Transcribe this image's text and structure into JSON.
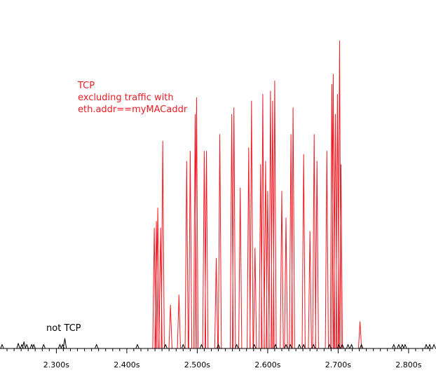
{
  "chart_data": {
    "type": "line",
    "xlabel": "",
    "ylabel": "",
    "xlim": [
      2.22,
      2.845
    ],
    "ylim": [
      0,
      1
    ],
    "x_ticks": [
      "2.300s",
      "2.400s",
      "2.500s",
      "2.600s",
      "2.700s",
      "2.800s"
    ],
    "x_tick_values": [
      2.3,
      2.4,
      2.5,
      2.6,
      2.7,
      2.8
    ],
    "grid": false,
    "legend": "none",
    "annotations": [
      {
        "lines": [
          "TCP",
          "excluding traffic with",
          "eth.addr==myMACaddr"
        ],
        "color": "#ed1c24"
      },
      {
        "lines": [
          "not TCP"
        ],
        "color": "#000000"
      }
    ],
    "series": [
      {
        "color": "#ed1c24",
        "baseline_from": 2.436,
        "baseline_to": 2.734,
        "peaks": [
          [
            2.439,
            0.36
          ],
          [
            2.442,
            0.38
          ],
          [
            2.444,
            0.42
          ],
          [
            2.448,
            0.36
          ],
          [
            2.451,
            0.62
          ],
          [
            2.462,
            0.13
          ],
          [
            2.474,
            0.16
          ],
          [
            2.485,
            0.56
          ],
          [
            2.49,
            0.59
          ],
          [
            2.497,
            0.7
          ],
          [
            2.499,
            0.75
          ],
          [
            2.51,
            0.59
          ],
          [
            2.513,
            0.59
          ],
          [
            2.527,
            0.27
          ],
          [
            2.532,
            0.64
          ],
          [
            2.549,
            0.7
          ],
          [
            2.552,
            0.72
          ],
          [
            2.561,
            0.48
          ],
          [
            2.573,
            0.6
          ],
          [
            2.577,
            0.74
          ],
          [
            2.582,
            0.3
          ],
          [
            2.59,
            0.55
          ],
          [
            2.593,
            0.76
          ],
          [
            2.597,
            0.56
          ],
          [
            2.6,
            0.47
          ],
          [
            2.604,
            0.77
          ],
          [
            2.607,
            0.74
          ],
          [
            2.61,
            0.8
          ],
          [
            2.62,
            0.47
          ],
          [
            2.626,
            0.39
          ],
          [
            2.633,
            0.64
          ],
          [
            2.636,
            0.72
          ],
          [
            2.651,
            0.58
          ],
          [
            2.66,
            0.35
          ],
          [
            2.666,
            0.64
          ],
          [
            2.67,
            0.56
          ],
          [
            2.684,
            0.59
          ],
          [
            2.691,
            0.79
          ],
          [
            2.693,
            0.82
          ],
          [
            2.696,
            0.7
          ],
          [
            2.699,
            0.76
          ],
          [
            2.702,
            0.92
          ],
          [
            2.704,
            0.55
          ],
          [
            2.731,
            0.08
          ]
        ]
      },
      {
        "color": "#000000",
        "baseline_from": 2.22,
        "baseline_to": 2.845,
        "peaks": [
          [
            2.223,
            0.012
          ],
          [
            2.246,
            0.015
          ],
          [
            2.251,
            0.012
          ],
          [
            2.254,
            0.02
          ],
          [
            2.258,
            0.012
          ],
          [
            2.265,
            0.012
          ],
          [
            2.268,
            0.012
          ],
          [
            2.282,
            0.012
          ],
          [
            2.305,
            0.012
          ],
          [
            2.309,
            0.012
          ],
          [
            2.312,
            0.03
          ],
          [
            2.357,
            0.012
          ],
          [
            2.415,
            0.012
          ],
          [
            2.455,
            0.012
          ],
          [
            2.48,
            0.012
          ],
          [
            2.506,
            0.012
          ],
          [
            2.53,
            0.012
          ],
          [
            2.556,
            0.012
          ],
          [
            2.581,
            0.012
          ],
          [
            2.611,
            0.012
          ],
          [
            2.626,
            0.012
          ],
          [
            2.632,
            0.012
          ],
          [
            2.645,
            0.012
          ],
          [
            2.651,
            0.012
          ],
          [
            2.665,
            0.012
          ],
          [
            2.688,
            0.012
          ],
          [
            2.701,
            0.012
          ],
          [
            2.706,
            0.012
          ],
          [
            2.714,
            0.012
          ],
          [
            2.719,
            0.012
          ],
          [
            2.733,
            0.012
          ],
          [
            2.779,
            0.012
          ],
          [
            2.786,
            0.012
          ],
          [
            2.791,
            0.012
          ],
          [
            2.795,
            0.012
          ],
          [
            2.825,
            0.012
          ],
          [
            2.83,
            0.012
          ],
          [
            2.836,
            0.012
          ]
        ]
      }
    ]
  }
}
